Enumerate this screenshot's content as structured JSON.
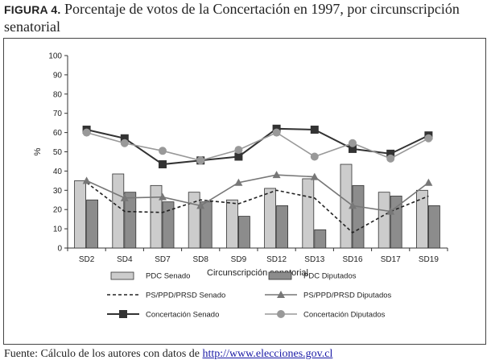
{
  "title": {
    "figure_label": "FIGURA 4.",
    "text": "Porcentaje de votos de la Concertación en 1997, por circunscripción senatorial"
  },
  "source": {
    "prefix": "Fuente: Cálculo de los autores con datos de ",
    "link": "http://www.elecciones.gov.cl"
  },
  "chart_data": {
    "type": "bar",
    "title": "Porcentaje de votos de la Concertación en 1997, por circunscripción senatorial",
    "xlabel": "Circunscripción senatorial",
    "ylabel": "%",
    "ylim": [
      0,
      100
    ],
    "yticks": [
      0,
      10,
      20,
      30,
      40,
      50,
      60,
      70,
      80,
      90,
      100
    ],
    "grid": false,
    "legend_position": "bottom",
    "categories": [
      "SD2",
      "SD4",
      "SD7",
      "SD8",
      "SD9",
      "SD12",
      "SD13",
      "SD16",
      "SD17",
      "SD19"
    ],
    "series": [
      {
        "name": "PDC Senado",
        "kind": "bar",
        "color": "#cccccc",
        "values": [
          35,
          38.5,
          32.5,
          29,
          25,
          31,
          36,
          43.5,
          29,
          30
        ]
      },
      {
        "name": "PDC Diputados",
        "kind": "bar",
        "color": "#8c8c8c",
        "values": [
          25,
          29,
          24,
          24,
          16.5,
          22,
          9.5,
          32.5,
          27,
          22
        ]
      },
      {
        "name": "PS/PPD/PRSD Senado",
        "kind": "line",
        "style": "dashed",
        "color": "#222222",
        "values": [
          34,
          19,
          18.5,
          25,
          23,
          30,
          26,
          8,
          19,
          27
        ]
      },
      {
        "name": "PS/PPD/PRSD Diputados",
        "kind": "line",
        "marker": "triangle",
        "color": "#777777",
        "values": [
          35,
          26,
          26.5,
          22,
          34,
          38,
          37,
          22,
          19,
          34
        ]
      },
      {
        "name": "Concertación Senado",
        "kind": "line",
        "marker": "square",
        "color": "#333333",
        "values": [
          61.5,
          57,
          43.5,
          45.5,
          47.5,
          62,
          61.5,
          51.5,
          49,
          58.5
        ]
      },
      {
        "name": "Concertación Diputados",
        "kind": "line",
        "marker": "circle",
        "color": "#999999",
        "values": [
          60,
          54.5,
          50.5,
          45.5,
          51,
          60,
          47.5,
          54.5,
          46.5,
          57
        ]
      }
    ]
  }
}
